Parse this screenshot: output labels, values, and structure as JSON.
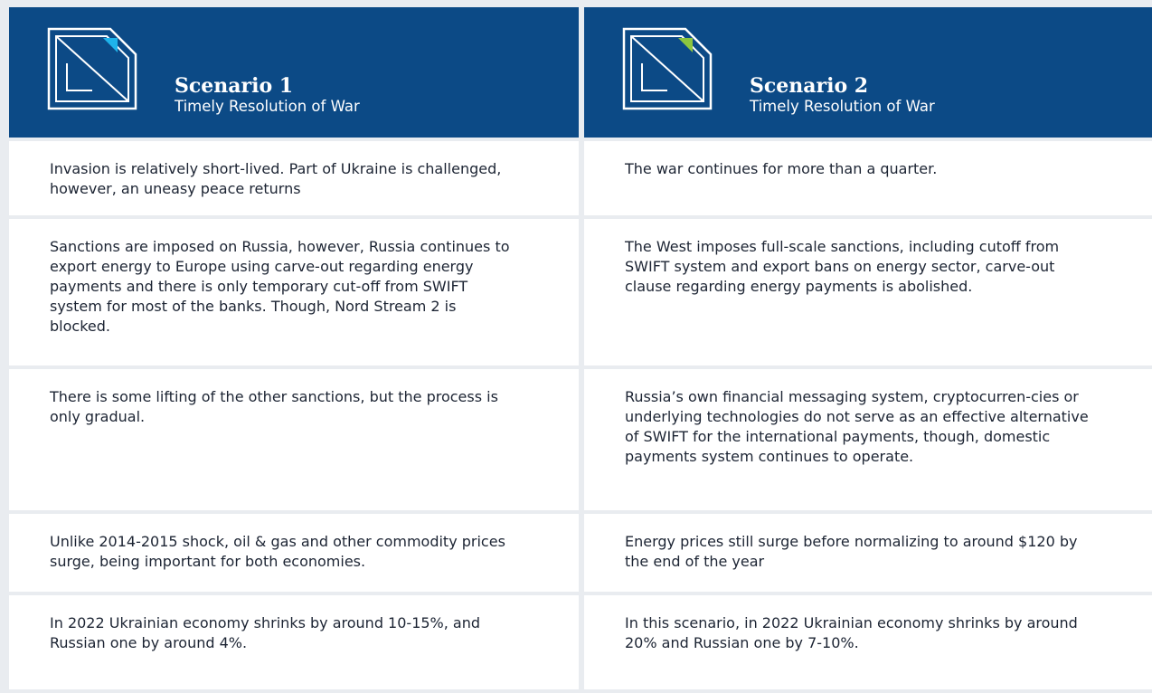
{
  "columns": [
    {
      "title": "Scenario 1",
      "subtitle": "Timely Resolution of War"
    },
    {
      "title": "Scenario 2",
      "subtitle": "Timely Resolution of War"
    }
  ],
  "rows": [
    [
      "Invasion is relatively short-lived. Part of Ukraine is challenged, however, an uneasy peace returns",
      "The war continues for more than a quarter."
    ],
    [
      "Sanctions are imposed on Russia, however, Russia continues to export energy to Europe using carve-out regarding energy payments and there is only temporary cut-off from SWIFT system for most of the banks. Though, Nord Stream 2 is blocked.",
      "The West imposes full-scale sanctions, including cutoff from SWIFT system and export bans on energy sector, carve-out clause regarding energy payments is abolished."
    ],
    [
      "There is some lifting of the other sanctions, but the process is only gradual.",
      "Russia’s own financial messaging system, cryptocurren-cies or underlying technologies do not serve as an effective alternative of SWIFT for the international payments, though, domestic payments system continues to operate."
    ],
    [
      "Unlike 2014-2015 shock, oil & gas and other commodity prices surge, being important for both economies.",
      "Energy prices still surge before normalizing to around $120 by the end of the year"
    ],
    [
      "In 2022 Ukrainian economy shrinks by around 10-15%, and Russian one by around 4%.",
      "In this scenario, in 2022 Ukrainian economy shrinks by around 20% and Russian one by 7-10%."
    ]
  ]
}
